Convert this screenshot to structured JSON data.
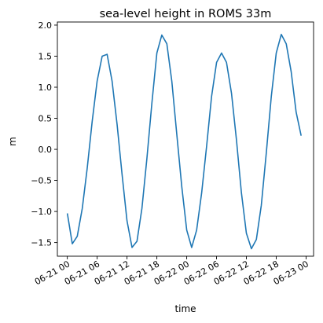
{
  "chart_data": {
    "type": "line",
    "title": "sea-level height in ROMS 33m",
    "xlabel": "time",
    "ylabel": "m",
    "x_ticks": [
      "06-21 00",
      "06-21 06",
      "06-21 12",
      "06-21 18",
      "06-22 00",
      "06-22 06",
      "06-22 12",
      "06-22 18",
      "06-23 00"
    ],
    "y_ticks": [
      "−1.5",
      "−1.0",
      "−0.5",
      "0.0",
      "0.5",
      "1.0",
      "1.5",
      "2.0"
    ],
    "x_range": [
      "2021-06-20T22:00",
      "2021-06-23T01:30"
    ],
    "ylim": [
      -1.72,
      2.05
    ],
    "grid": false,
    "series": [
      {
        "color": "#1f77b4",
        "x": [
          "2021-06-21T00:00",
          "2021-06-21T01:00",
          "2021-06-21T02:00",
          "2021-06-21T03:00",
          "2021-06-21T04:00",
          "2021-06-21T05:00",
          "2021-06-21T06:00",
          "2021-06-21T07:00",
          "2021-06-21T08:00",
          "2021-06-21T09:00",
          "2021-06-21T10:00",
          "2021-06-21T11:00",
          "2021-06-21T12:00",
          "2021-06-21T13:00",
          "2021-06-21T14:00",
          "2021-06-21T15:00",
          "2021-06-21T16:00",
          "2021-06-21T17:00",
          "2021-06-21T18:00",
          "2021-06-21T19:00",
          "2021-06-21T20:00",
          "2021-06-21T21:00",
          "2021-06-21T22:00",
          "2021-06-21T23:00",
          "2021-06-22T00:00",
          "2021-06-22T01:00",
          "2021-06-22T02:00",
          "2021-06-22T03:00",
          "2021-06-22T04:00",
          "2021-06-22T05:00",
          "2021-06-22T06:00",
          "2021-06-22T07:00",
          "2021-06-22T08:00",
          "2021-06-22T09:00",
          "2021-06-22T10:00",
          "2021-06-22T11:00",
          "2021-06-22T12:00",
          "2021-06-22T13:00",
          "2021-06-22T14:00",
          "2021-06-22T15:00",
          "2021-06-22T16:00",
          "2021-06-22T17:00",
          "2021-06-22T18:00",
          "2021-06-22T19:00",
          "2021-06-22T20:00",
          "2021-06-22T21:00",
          "2021-06-22T22:00",
          "2021-06-22T23:00"
        ],
        "y": [
          -1.03,
          -1.52,
          -1.4,
          -0.95,
          -0.3,
          0.45,
          1.1,
          1.5,
          1.53,
          1.1,
          0.4,
          -0.4,
          -1.15,
          -1.58,
          -1.48,
          -0.95,
          -0.15,
          0.75,
          1.55,
          1.84,
          1.7,
          1.1,
          0.25,
          -0.6,
          -1.3,
          -1.58,
          -1.3,
          -0.7,
          0.05,
          0.85,
          1.4,
          1.55,
          1.4,
          0.9,
          0.15,
          -0.7,
          -1.35,
          -1.6,
          -1.45,
          -0.9,
          -0.05,
          0.85,
          1.55,
          1.85,
          1.7,
          1.25,
          0.6,
          0.22
        ]
      }
    ]
  }
}
